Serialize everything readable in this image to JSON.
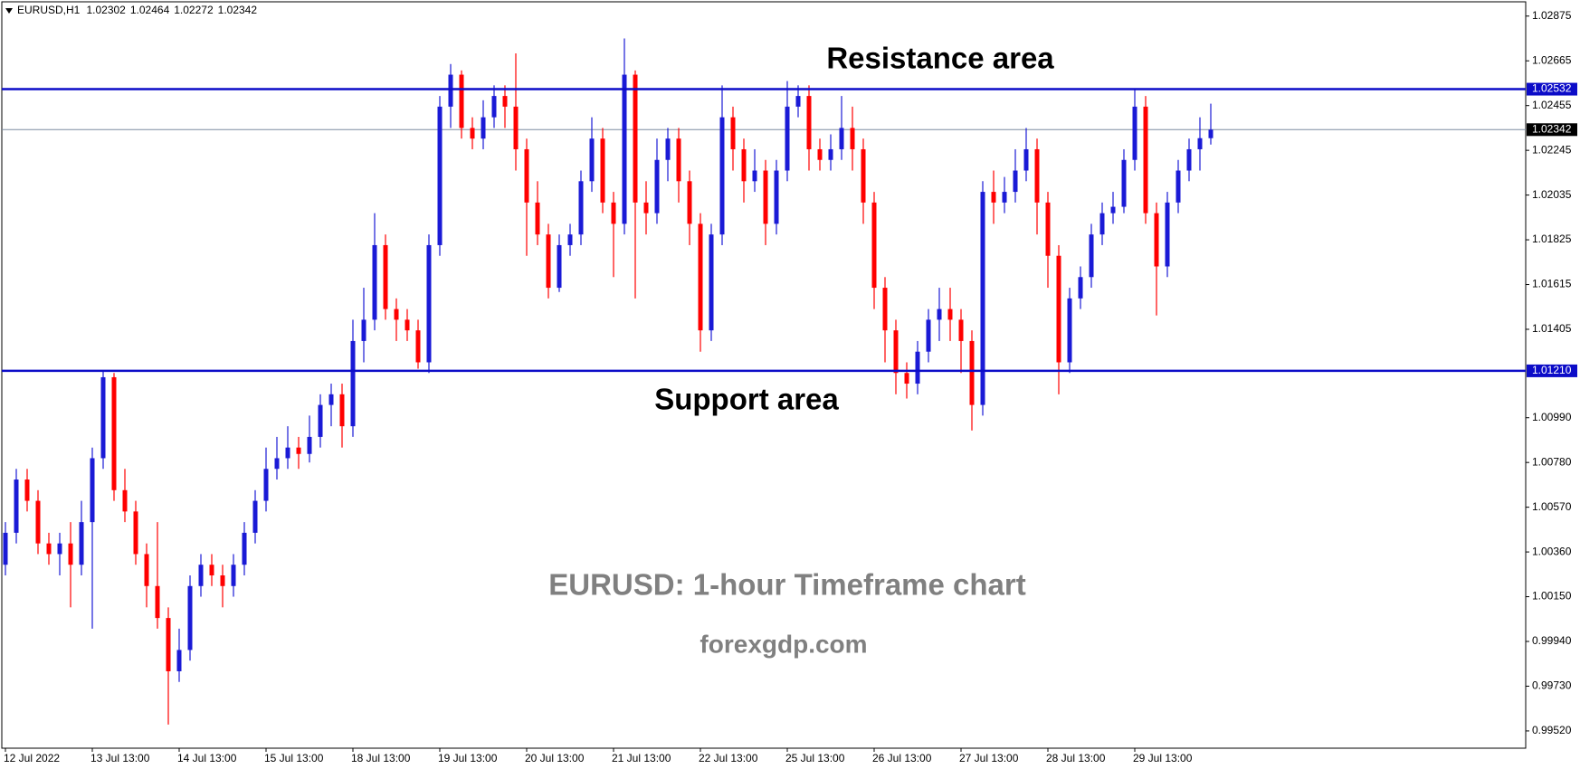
{
  "chart_data": {
    "type": "candlestick",
    "title": "EURUSD,H1",
    "header_values": [
      1.02302,
      1.02464,
      1.02272,
      1.02342
    ],
    "categories": [
      "12 Jul 2022",
      null,
      null,
      null,
      null,
      null,
      null,
      null,
      "13 Jul 13:00",
      null,
      null,
      null,
      null,
      null,
      null,
      null,
      "14 Jul 13:00",
      null,
      null,
      null,
      null,
      null,
      null,
      null,
      "15 Jul 13:00",
      null,
      null,
      null,
      null,
      null,
      null,
      null,
      "18 Jul 13:00",
      null,
      null,
      null,
      null,
      null,
      null,
      null,
      "19 Jul 13:00",
      null,
      null,
      null,
      null,
      null,
      null,
      null,
      "20 Jul 13:00",
      null,
      null,
      null,
      null,
      null,
      null,
      null,
      "21 Jul 13:00",
      null,
      null,
      null,
      null,
      null,
      null,
      null,
      "22 Jul 13:00",
      null,
      null,
      null,
      null,
      null,
      null,
      null,
      "25 Jul 13:00",
      null,
      null,
      null,
      null,
      null,
      null,
      null,
      "26 Jul 13:00",
      null,
      null,
      null,
      null,
      null,
      null,
      null,
      "27 Jul 13:00",
      null,
      null,
      null,
      null,
      null,
      null,
      null,
      "28 Jul 13:00",
      null,
      null,
      null,
      null,
      null,
      null,
      null,
      "29 Jul 13:00",
      null,
      null,
      null,
      null,
      null,
      null,
      null
    ],
    "open": [
      1.003,
      1.0045,
      1.007,
      1.006,
      1.004,
      1.0035,
      1.004,
      1.003,
      1.005,
      1.008,
      1.0118,
      1.0065,
      1.0055,
      1.0035,
      1.002,
      1.0005,
      0.998,
      0.999,
      1.002,
      1.003,
      1.0025,
      1.002,
      1.003,
      1.0045,
      1.006,
      1.0075,
      1.008,
      1.0085,
      1.0082,
      1.009,
      1.0105,
      1.011,
      1.0095,
      1.0135,
      1.0145,
      1.018,
      1.015,
      1.0145,
      1.014,
      1.0125,
      1.018,
      1.0245,
      1.026,
      1.0235,
      1.023,
      1.024,
      1.025,
      1.0245,
      1.0225,
      1.02,
      1.0185,
      1.016,
      1.018,
      1.0185,
      1.021,
      1.023,
      1.02,
      1.019,
      1.026,
      1.02,
      1.0195,
      1.022,
      1.023,
      1.021,
      1.019,
      1.014,
      1.0185,
      1.024,
      1.0225,
      1.021,
      1.0215,
      1.019,
      1.0215,
      1.0245,
      1.025,
      1.0225,
      1.022,
      1.0225,
      1.0235,
      1.0225,
      1.02,
      1.016,
      1.014,
      1.012,
      1.0115,
      1.013,
      1.0145,
      1.015,
      1.0145,
      1.0135,
      1.0105,
      1.0205,
      1.02,
      1.0205,
      1.0215,
      1.0225,
      1.02,
      1.0175,
      1.0125,
      1.0155,
      1.0165,
      1.0185,
      1.0195,
      1.0198,
      1.022,
      1.0245,
      1.0195,
      1.017,
      1.02,
      1.0215,
      1.0225,
      1.02302
    ],
    "high": [
      1.005,
      1.0075,
      1.0075,
      1.0065,
      1.0045,
      1.0045,
      1.005,
      1.006,
      1.0085,
      1.0121,
      1.012,
      1.0075,
      1.006,
      1.004,
      1.005,
      1.001,
      1.0,
      1.0025,
      1.0035,
      1.0035,
      1.003,
      1.0035,
      1.005,
      1.0065,
      1.0085,
      1.009,
      1.0095,
      1.009,
      1.01,
      1.011,
      1.0115,
      1.0115,
      1.0145,
      1.016,
      1.0195,
      1.0185,
      1.0155,
      1.015,
      1.0145,
      1.0185,
      1.025,
      1.0265,
      1.0262,
      1.024,
      1.0248,
      1.0255,
      1.0255,
      1.027,
      1.023,
      1.021,
      1.019,
      1.0185,
      1.019,
      1.0215,
      1.024,
      1.0235,
      1.0205,
      1.0277,
      1.0262,
      1.021,
      1.023,
      1.0235,
      1.0235,
      1.0215,
      1.0195,
      1.019,
      1.0255,
      1.0245,
      1.023,
      1.0225,
      1.022,
      1.022,
      1.0257,
      1.0255,
      1.0255,
      1.023,
      1.0232,
      1.025,
      1.0245,
      1.023,
      1.0205,
      1.0165,
      1.0145,
      1.0125,
      1.0135,
      1.015,
      1.016,
      1.016,
      1.015,
      1.014,
      1.021,
      1.0215,
      1.0212,
      1.0225,
      1.0235,
      1.023,
      1.0205,
      1.018,
      1.016,
      1.017,
      1.019,
      1.02,
      1.0205,
      1.0225,
      1.0253,
      1.025,
      1.02,
      1.0205,
      1.022,
      1.023,
      1.024,
      1.02464
    ],
    "low": [
      1.0025,
      1.004,
      1.0055,
      1.0035,
      1.003,
      1.0025,
      1.001,
      1.0025,
      1.0,
      1.0075,
      1.006,
      1.005,
      1.003,
      1.001,
      1.0,
      0.9955,
      0.9975,
      0.9985,
      1.0015,
      1.002,
      1.001,
      1.0015,
      1.0025,
      1.004,
      1.0055,
      1.007,
      1.0075,
      1.0075,
      1.0078,
      1.0085,
      1.0095,
      1.0085,
      1.009,
      1.0125,
      1.014,
      1.0145,
      1.0135,
      1.0135,
      1.0122,
      1.012,
      1.0175,
      1.0235,
      1.023,
      1.0225,
      1.0225,
      1.0235,
      1.0235,
      1.0215,
      1.0175,
      1.018,
      1.0155,
      1.0158,
      1.0175,
      1.018,
      1.0205,
      1.0195,
      1.0165,
      1.0185,
      1.0155,
      1.0185,
      1.019,
      1.021,
      1.02,
      1.018,
      1.013,
      1.0135,
      1.018,
      1.0215,
      1.02,
      1.0205,
      1.018,
      1.0185,
      1.021,
      1.024,
      1.0215,
      1.0215,
      1.0215,
      1.022,
      1.0215,
      1.019,
      1.015,
      1.0125,
      1.011,
      1.0108,
      1.011,
      1.0125,
      1.0135,
      1.0135,
      1.012,
      1.0093,
      1.01,
      1.019,
      1.0195,
      1.02,
      1.021,
      1.0185,
      1.016,
      1.011,
      1.012,
      1.015,
      1.016,
      1.018,
      1.019,
      1.0195,
      1.0215,
      1.019,
      1.0147,
      1.0165,
      1.0195,
      1.021,
      1.0215,
      1.02272
    ],
    "close": [
      1.0045,
      1.007,
      1.006,
      1.004,
      1.0035,
      1.004,
      1.003,
      1.005,
      1.008,
      1.0118,
      1.0065,
      1.0055,
      1.0035,
      1.002,
      1.0005,
      0.998,
      0.999,
      1.002,
      1.003,
      1.0025,
      1.002,
      1.003,
      1.0045,
      1.006,
      1.0075,
      1.008,
      1.0085,
      1.0082,
      1.009,
      1.0105,
      1.011,
      1.0095,
      1.0135,
      1.0145,
      1.018,
      1.015,
      1.0145,
      1.014,
      1.0125,
      1.018,
      1.0245,
      1.026,
      1.0235,
      1.023,
      1.024,
      1.025,
      1.0245,
      1.0225,
      1.02,
      1.0185,
      1.016,
      1.018,
      1.0185,
      1.021,
      1.023,
      1.02,
      1.019,
      1.026,
      1.02,
      1.0195,
      1.022,
      1.023,
      1.021,
      1.019,
      1.014,
      1.0185,
      1.024,
      1.0225,
      1.021,
      1.0215,
      1.019,
      1.0215,
      1.0245,
      1.025,
      1.0225,
      1.022,
      1.0225,
      1.0235,
      1.0225,
      1.02,
      1.016,
      1.014,
      1.012,
      1.0115,
      1.013,
      1.0145,
      1.015,
      1.0145,
      1.0135,
      1.0105,
      1.0205,
      1.02,
      1.0205,
      1.0215,
      1.0225,
      1.02,
      1.0175,
      1.0125,
      1.0155,
      1.0165,
      1.0185,
      1.0195,
      1.0198,
      1.022,
      1.0245,
      1.0195,
      1.017,
      1.02,
      1.0215,
      1.0225,
      1.02302,
      1.02342
    ],
    "up_color": "#1a1ad6",
    "down_color": "#ff0000",
    "ylim": [
      0.99439,
      1.02942
    ],
    "yticks": [
      {
        "value": 1.02875,
        "label": "1.02875"
      },
      {
        "value": 1.02665,
        "label": "1.02665"
      },
      {
        "value": 1.02455,
        "label": "1.02455"
      },
      {
        "value": 1.02245,
        "label": "1.02245"
      },
      {
        "value": 1.02035,
        "label": "1.02035"
      },
      {
        "value": 1.01825,
        "label": "1.01825"
      },
      {
        "value": 1.01615,
        "label": "1.01615"
      },
      {
        "value": 1.01405,
        "label": "1.01405"
      },
      {
        "value": 1.0099,
        "label": "1.00990"
      },
      {
        "value": 1.0078,
        "label": "1.00780"
      },
      {
        "value": 1.0057,
        "label": "1.00570"
      },
      {
        "value": 1.0036,
        "label": "1.00360"
      },
      {
        "value": 1.0015,
        "label": "1.00150"
      },
      {
        "value": 0.9994,
        "label": "0.99940"
      },
      {
        "value": 0.9973,
        "label": "0.99730"
      },
      {
        "value": 0.9952,
        "label": "0.99520"
      }
    ],
    "hlines": [
      {
        "value": 1.02532,
        "label": "1.02532",
        "color": "#0c0cc8",
        "annotation": "Resistance area"
      },
      {
        "value": 1.0121,
        "label": "1.01210",
        "color": "#0c0cc8",
        "annotation": "Support area"
      }
    ],
    "current_price": {
      "value": 1.02342,
      "label": "1.02342"
    },
    "annotations": [
      "EURUSD: 1-hour Timeframe chart",
      "forexgdp.com"
    ]
  }
}
